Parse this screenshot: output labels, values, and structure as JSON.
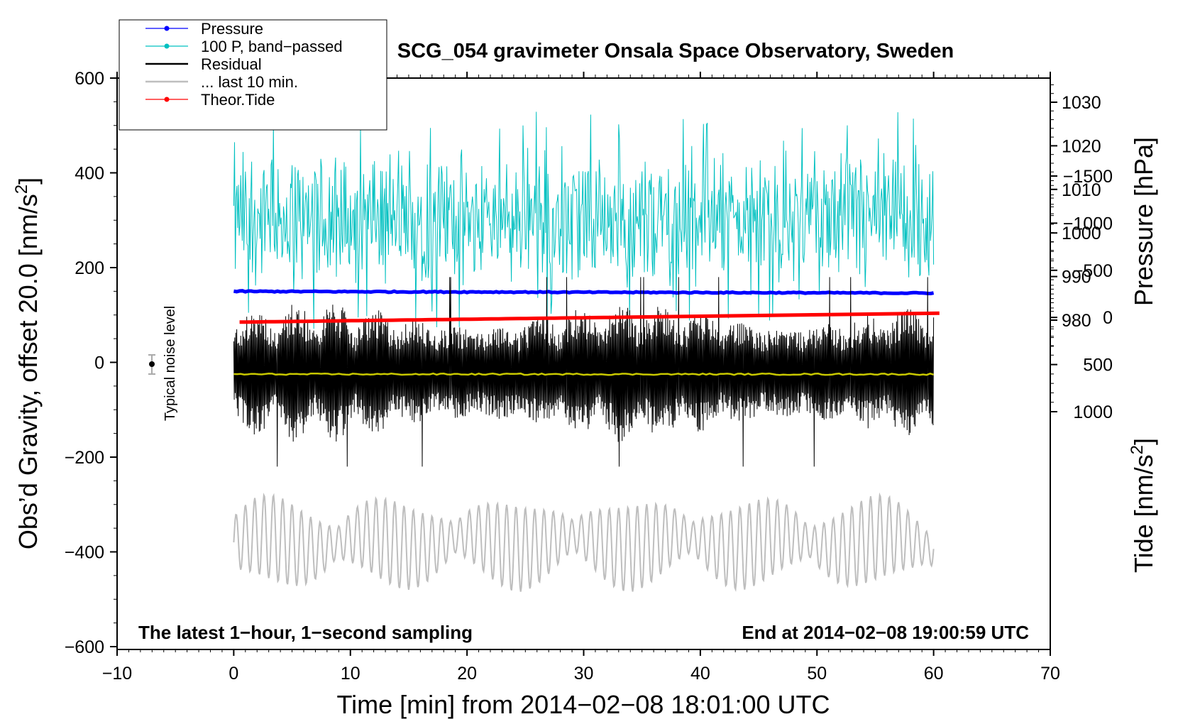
{
  "chart_data": {
    "type": "line",
    "title": "SCG_054 gravimeter Onsala Space Observatory, Sweden",
    "xlabel": "Time [min] from 2014−02−08 18:01:00 UTC",
    "ylabel_main": "Obs’d Gravity, offset 20.0",
    "ylabel_unit": "[nm/s",
    "ylabel_sup": "2",
    "ylabel_close": "]",
    "ylabel_pressure": "Pressure [hPa]",
    "ylabel_tide_main": "Tide [nm/s",
    "ylabel_tide_sup": "2",
    "ylabel_tide_close": "]",
    "xlim": [
      -10,
      70
    ],
    "ylim": [
      -600,
      600
    ],
    "pressure_lim": [
      969.9,
      1035.0
    ],
    "tide_lim": [
      -1500,
      1000
    ],
    "x_ticks": [
      "−10",
      "0",
      "10",
      "20",
      "30",
      "40",
      "50",
      "60",
      "70"
    ],
    "x_tick_values": [
      -10,
      0,
      10,
      20,
      30,
      40,
      50,
      60,
      70
    ],
    "y_ticks": [
      "600",
      "400",
      "200",
      "0",
      "−200",
      "−400",
      "−600"
    ],
    "y_tick_values": [
      600,
      400,
      200,
      0,
      -200,
      -400,
      -600
    ],
    "pressure_ticks": [
      "1030",
      "1020",
      "1010",
      "1000",
      "990",
      "980"
    ],
    "pressure_tick_values": [
      1030,
      1020,
      1010,
      1000,
      990,
      980
    ],
    "tide_ticks": [
      "1000",
      "500",
      "0",
      "−500",
      "−1000",
      "−1500"
    ],
    "tide_tick_values": [
      1000,
      500,
      0,
      -500,
      -1000,
      -1500
    ],
    "annotation_left": "The latest 1−hour, 1−second sampling",
    "annotation_right": "End at 2014−02−08 19:00:59 UTC",
    "noise_label": "Typical noise level",
    "noise_marker": {
      "x": -7,
      "y": 0,
      "err": 20
    },
    "legend": [
      {
        "label": "Pressure",
        "color": "#0000ff",
        "marker": true
      },
      {
        "label": "100 P, band−passed",
        "color": "#00c0c0",
        "marker": true
      },
      {
        "label": "Residual",
        "color": "#000000",
        "marker": false
      },
      {
        "label": "... last 10 min.",
        "color": "#bebebe",
        "marker": false
      },
      {
        "label": "Theor.Tide",
        "color": "#ff0000",
        "marker": true
      }
    ],
    "series": [
      {
        "name": "Pressure",
        "color": "#0000ff",
        "axis": "pressure",
        "x_range": [
          0,
          60
        ],
        "y_start": 986.6,
        "y_end": 986.2
      },
      {
        "name": "100 P, band−passed",
        "color": "#00c0c0",
        "axis": "gravity",
        "x_range": [
          0,
          60
        ],
        "y_center": 300,
        "y_amplitude": 150,
        "oscillating": true
      },
      {
        "name": "Residual",
        "color": "#000000",
        "axis": "gravity",
        "x_range": [
          0,
          60
        ],
        "y_center": 0,
        "y_amplitude": 150,
        "oscillating": true
      },
      {
        "name": "Residual mean",
        "color": "#c8c800",
        "axis": "gravity",
        "x_range": [
          0,
          60
        ],
        "y_start": -25,
        "y_end": -25
      },
      {
        "name": "... last 10 min.",
        "color": "#bebebe",
        "axis": "gravity",
        "x_range": [
          0,
          60
        ],
        "y_center": -380,
        "y_amplitude": 90,
        "oscillating": true
      },
      {
        "name": "Theor.Tide",
        "color": "#ff0000",
        "axis": "tide",
        "x_range": [
          0.5,
          60.5
        ],
        "y_start": 50,
        "y_end": -45
      }
    ]
  }
}
